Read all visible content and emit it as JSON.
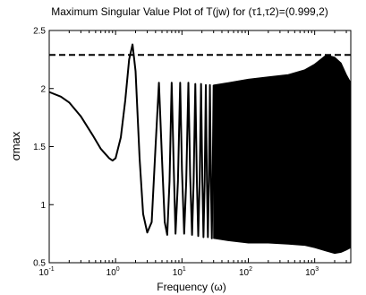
{
  "chart_data": {
    "type": "line",
    "title": "Maximum Singular Value Plot of T(jw) for (τ1,τ2)=(0.999,2)",
    "xlabel": "Frequency (ω)",
    "ylabel": "σmax",
    "xscale": "log",
    "xlim": [
      0.1,
      3500
    ],
    "ylim": [
      0.5,
      2.5
    ],
    "grid": false,
    "x_ticks": [
      {
        "value": 0.1,
        "base": "10",
        "exp": "-1"
      },
      {
        "value": 1,
        "base": "10",
        "exp": "0"
      },
      {
        "value": 10,
        "base": "10",
        "exp": "1"
      },
      {
        "value": 100,
        "base": "10",
        "exp": "2"
      },
      {
        "value": 1000,
        "base": "10",
        "exp": "3"
      }
    ],
    "y_ticks": [
      {
        "value": 0.5,
        "label": "0.5"
      },
      {
        "value": 1,
        "label": "1"
      },
      {
        "value": 1.5,
        "label": "1.5"
      },
      {
        "value": 2,
        "label": "2"
      },
      {
        "value": 2.5,
        "label": "2.5"
      }
    ],
    "series": [
      {
        "style": "solid",
        "x": [
          0.1,
          0.15,
          0.2,
          0.3,
          0.45,
          0.6,
          0.8,
          0.9,
          1.0,
          1.2,
          1.4,
          1.6,
          1.8,
          2.0,
          2.3,
          2.6,
          3.0,
          3.5,
          4.0,
          4.5,
          5.0,
          5.5,
          6.0,
          6.5,
          7.0,
          7.5,
          8.0,
          8.7,
          9.4,
          10.0,
          10.8,
          11.6,
          12.5,
          13.3,
          14.2,
          15.0,
          15.9,
          16.8,
          17.6,
          18.5,
          19.4,
          20.3,
          21.1,
          22.0,
          22.9,
          23.8,
          24.6,
          25.5,
          26.4,
          27.3,
          28.2,
          29.0,
          30.0
        ],
        "y": [
          1.97,
          1.93,
          1.88,
          1.76,
          1.6,
          1.48,
          1.4,
          1.38,
          1.4,
          1.58,
          1.9,
          2.25,
          2.38,
          2.15,
          1.4,
          0.92,
          0.76,
          0.85,
          1.5,
          2.05,
          1.4,
          0.85,
          0.74,
          1.2,
          2.05,
          1.35,
          0.75,
          1.2,
          2.05,
          1.3,
          0.75,
          1.2,
          2.05,
          1.25,
          0.74,
          1.2,
          2.04,
          1.2,
          0.73,
          1.2,
          2.04,
          1.2,
          0.72,
          1.2,
          2.03,
          1.2,
          0.72,
          1.2,
          2.03,
          1.2,
          0.71,
          1.2,
          2.03
        ]
      },
      {
        "style": "solid",
        "note": "dense oscillation band from ω≈30 to ω≈3500",
        "x": [
          30,
          50,
          100,
          200,
          400,
          700,
          1000,
          1500,
          2000,
          2500,
          3000,
          3500
        ],
        "upper": [
          2.03,
          2.05,
          2.08,
          2.1,
          2.12,
          2.16,
          2.21,
          2.29,
          2.27,
          2.22,
          2.12,
          2.05
        ],
        "lower": [
          0.71,
          0.69,
          0.67,
          0.67,
          0.66,
          0.65,
          0.63,
          0.6,
          0.58,
          0.59,
          0.61,
          0.63
        ]
      },
      {
        "style": "dashed",
        "x": [
          0.1,
          3500
        ],
        "y": [
          2.29,
          2.29
        ]
      }
    ]
  }
}
